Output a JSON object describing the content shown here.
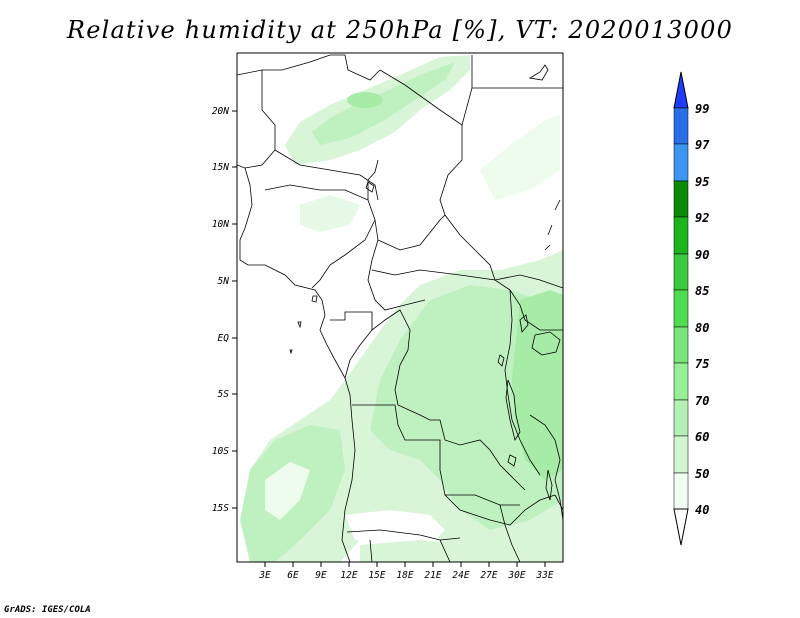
{
  "title": "Relative humidity at 250hPa [%], VT: 2020013000",
  "footer": "GrADS: IGES/COLA",
  "map": {
    "variable": "Relative humidity at 250hPa",
    "units": "%",
    "valid_time": "2020013000",
    "lon_range": [
      0,
      35
    ],
    "lat_range": [
      -20,
      25
    ],
    "x_ticks": [
      "3E",
      "6E",
      "9E",
      "12E",
      "15E",
      "18E",
      "21E",
      "24E",
      "27E",
      "30E",
      "33E"
    ],
    "y_ticks": [
      "20N",
      "15N",
      "10N",
      "5N",
      "EQ",
      "5S",
      "10S",
      "15S"
    ]
  },
  "colorbar": {
    "levels": [
      "99",
      "97",
      "95",
      "92",
      "90",
      "85",
      "80",
      "75",
      "70",
      "60",
      "50",
      "40"
    ],
    "colors": [
      "#1e3cff",
      "#2a6ee6",
      "#3c96f0",
      "#0a8c0a",
      "#1eb41e",
      "#3cc83c",
      "#50dc50",
      "#78e678",
      "#96f096",
      "#b4f0b4",
      "#d2f5d2",
      "#f0fff0"
    ]
  },
  "colors": {
    "rh_40_50": "#eefcee",
    "rh_50_60": "#d8f5d8",
    "rh_60_70": "#bff0bf",
    "rh_70_75": "#a6eba6",
    "boundary": "#000000"
  }
}
